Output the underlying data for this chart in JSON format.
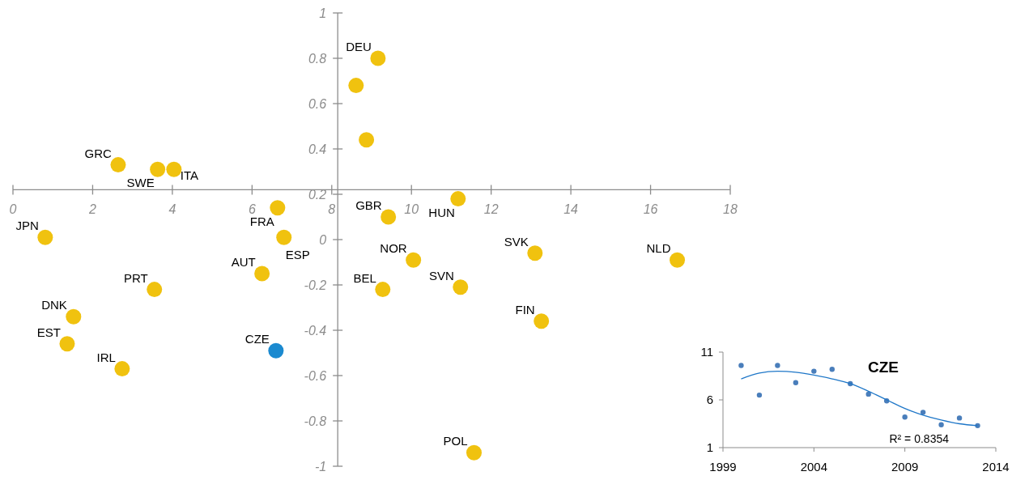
{
  "chart_data": [
    {
      "type": "scatter",
      "marker": "circle",
      "grid": false,
      "xlim": [
        0,
        18
      ],
      "xticks": [
        0,
        2,
        4,
        6,
        8,
        10,
        12,
        14,
        16,
        18
      ],
      "ylim": [
        -1,
        1
      ],
      "yticks": [
        -1,
        -0.8,
        -0.6,
        -0.4,
        -0.2,
        0,
        0.2,
        0.4,
        0.6,
        0.8,
        1
      ],
      "x": [
        0.81,
        2.64,
        3.63,
        4.04,
        6.64,
        6.8,
        6.25,
        3.55,
        1.52,
        1.36,
        2.74,
        6.6,
        9.16,
        8.61,
        8.87,
        9.42,
        11.17,
        10.05,
        13.1,
        16.67,
        9.28,
        11.23,
        13.26,
        11.57
      ],
      "values": [
        0.01,
        0.33,
        0.31,
        0.31,
        0.14,
        0.01,
        -0.15,
        -0.22,
        -0.34,
        -0.46,
        -0.57,
        -0.49,
        0.8,
        0.68,
        0.44,
        0.1,
        0.18,
        -0.09,
        -0.06,
        -0.09,
        -0.22,
        -0.21,
        -0.36,
        -0.94
      ],
      "colors": [
        "#f0c20f",
        "#f0c20f",
        "#f0c20f",
        "#f0c20f",
        "#f0c20f",
        "#f0c20f",
        "#f0c20f",
        "#f0c20f",
        "#f0c20f",
        "#f0c20f",
        "#f0c20f",
        "#1b8ad0",
        "#f0c20f",
        "#f0c20f",
        "#f0c20f",
        "#f0c20f",
        "#f0c20f",
        "#f0c20f",
        "#f0c20f",
        "#f0c20f",
        "#f0c20f",
        "#f0c20f",
        "#f0c20f",
        "#f0c20f"
      ],
      "annotations": [
        {
          "text": "JPN",
          "x": 0.81,
          "y": 0.01
        },
        {
          "text": "GRC",
          "x": 2.64,
          "y": 0.33
        },
        {
          "text": "SWE",
          "x": 3.63,
          "y": 0.31
        },
        {
          "text": "ITA",
          "x": 4.04,
          "y": 0.31
        },
        {
          "text": "FRA",
          "x": 6.64,
          "y": 0.14
        },
        {
          "text": "ESP",
          "x": 6.8,
          "y": 0.01
        },
        {
          "text": "AUT",
          "x": 6.25,
          "y": -0.15
        },
        {
          "text": "PRT",
          "x": 3.55,
          "y": -0.22
        },
        {
          "text": "DNK",
          "x": 1.52,
          "y": -0.34
        },
        {
          "text": "EST",
          "x": 1.36,
          "y": -0.46
        },
        {
          "text": "IRL",
          "x": 2.74,
          "y": -0.57
        },
        {
          "text": "CZE",
          "x": 6.6,
          "y": -0.49
        },
        {
          "text": "DEU",
          "x": 9.16,
          "y": 0.8
        },
        {
          "text": "GBR",
          "x": 9.42,
          "y": 0.1
        },
        {
          "text": "HUN",
          "x": 11.17,
          "y": 0.18
        },
        {
          "text": "NOR",
          "x": 10.05,
          "y": -0.09
        },
        {
          "text": "SVK",
          "x": 13.1,
          "y": -0.06
        },
        {
          "text": "NLD",
          "x": 16.67,
          "y": -0.09
        },
        {
          "text": "BEL",
          "x": 9.28,
          "y": -0.22
        },
        {
          "text": "SVN",
          "x": 11.23,
          "y": -0.21
        },
        {
          "text": "FIN",
          "x": 13.26,
          "y": -0.36
        },
        {
          "text": "POL",
          "x": 11.57,
          "y": -0.94
        }
      ]
    },
    {
      "type": "scatter",
      "title": "CZE",
      "grid": false,
      "xlim": [
        1999,
        2014
      ],
      "xticks": [
        1999,
        2004,
        2009,
        2014
      ],
      "ylim": [
        1,
        11
      ],
      "yticks": [
        1,
        6,
        11
      ],
      "annotations": [
        "R² = 0.8354"
      ],
      "series": [
        {
          "marker": "circle",
          "color": "#4a7ebb",
          "x": [
            2000,
            2001,
            2002,
            2003,
            2004,
            2005,
            2006,
            2007,
            2008,
            2009,
            2010,
            2011,
            2012,
            2013
          ],
          "values": [
            9.6,
            6.5,
            9.6,
            7.8,
            9,
            9.2,
            7.7,
            6.6,
            5.9,
            4.2,
            4.7,
            3.4,
            4.1,
            3.3
          ]
        },
        {
          "type": "line",
          "color": "#1f77c8",
          "x": [
            2000,
            2001,
            2002,
            2003,
            2004,
            2005,
            2006,
            2007,
            2008,
            2009,
            2010,
            2011,
            2012,
            2013
          ],
          "values": [
            8.2,
            8.8,
            9,
            8.9,
            8.6,
            8.2,
            7.7,
            6.9,
            6,
            5.1,
            4.4,
            3.9,
            3.5,
            3.3
          ]
        }
      ]
    }
  ]
}
